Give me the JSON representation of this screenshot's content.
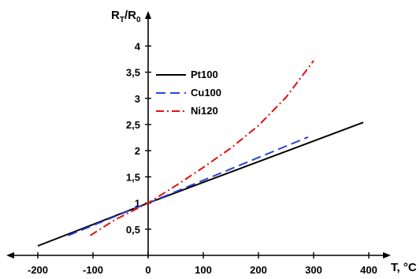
{
  "chart_data": {
    "type": "line",
    "xlabel": "T, °C",
    "ylabel_main": "R",
    "ylabel_sub1": "T",
    "ylabel_slash": "/R",
    "ylabel_sub2": "0",
    "xlim": [
      -200,
      430
    ],
    "ylim": [
      0,
      4.5
    ],
    "x_ticks": [
      {
        "value": -200,
        "label": "-200"
      },
      {
        "value": -100,
        "label": "-100"
      },
      {
        "value": 0,
        "label": "0"
      },
      {
        "value": 100,
        "label": "100"
      },
      {
        "value": 200,
        "label": "200"
      },
      {
        "value": 300,
        "label": "300"
      },
      {
        "value": 400,
        "label": "400"
      }
    ],
    "y_ticks": [
      {
        "value": 0.5,
        "label": "0,5"
      },
      {
        "value": 1,
        "label": "1"
      },
      {
        "value": 1.5,
        "label": "1,5"
      },
      {
        "value": 2,
        "label": "2"
      },
      {
        "value": 2.5,
        "label": "2,5"
      },
      {
        "value": 3,
        "label": "3"
      },
      {
        "value": 3.5,
        "label": "3,5"
      },
      {
        "value": 4,
        "label": "4"
      }
    ],
    "legend_position": "top-left of plot, right of y-axis",
    "series": [
      {
        "name": "Pt100",
        "color": "#000000",
        "dash": "solid",
        "x": [
          -200,
          0,
          390
        ],
        "y": [
          0.18,
          1.0,
          2.54
        ]
      },
      {
        "name": "Cu100",
        "color": "#2a44d8",
        "dash": "dashed",
        "x": [
          -145,
          0,
          290
        ],
        "y": [
          0.38,
          1.0,
          2.26
        ]
      },
      {
        "name": "Ni120",
        "color": "#e01010",
        "dash": "dashdot",
        "x": [
          -105,
          -60,
          0,
          50,
          100,
          150,
          200,
          250,
          300
        ],
        "y": [
          0.38,
          0.68,
          1.0,
          1.33,
          1.68,
          2.05,
          2.48,
          3.02,
          3.72
        ]
      }
    ]
  }
}
